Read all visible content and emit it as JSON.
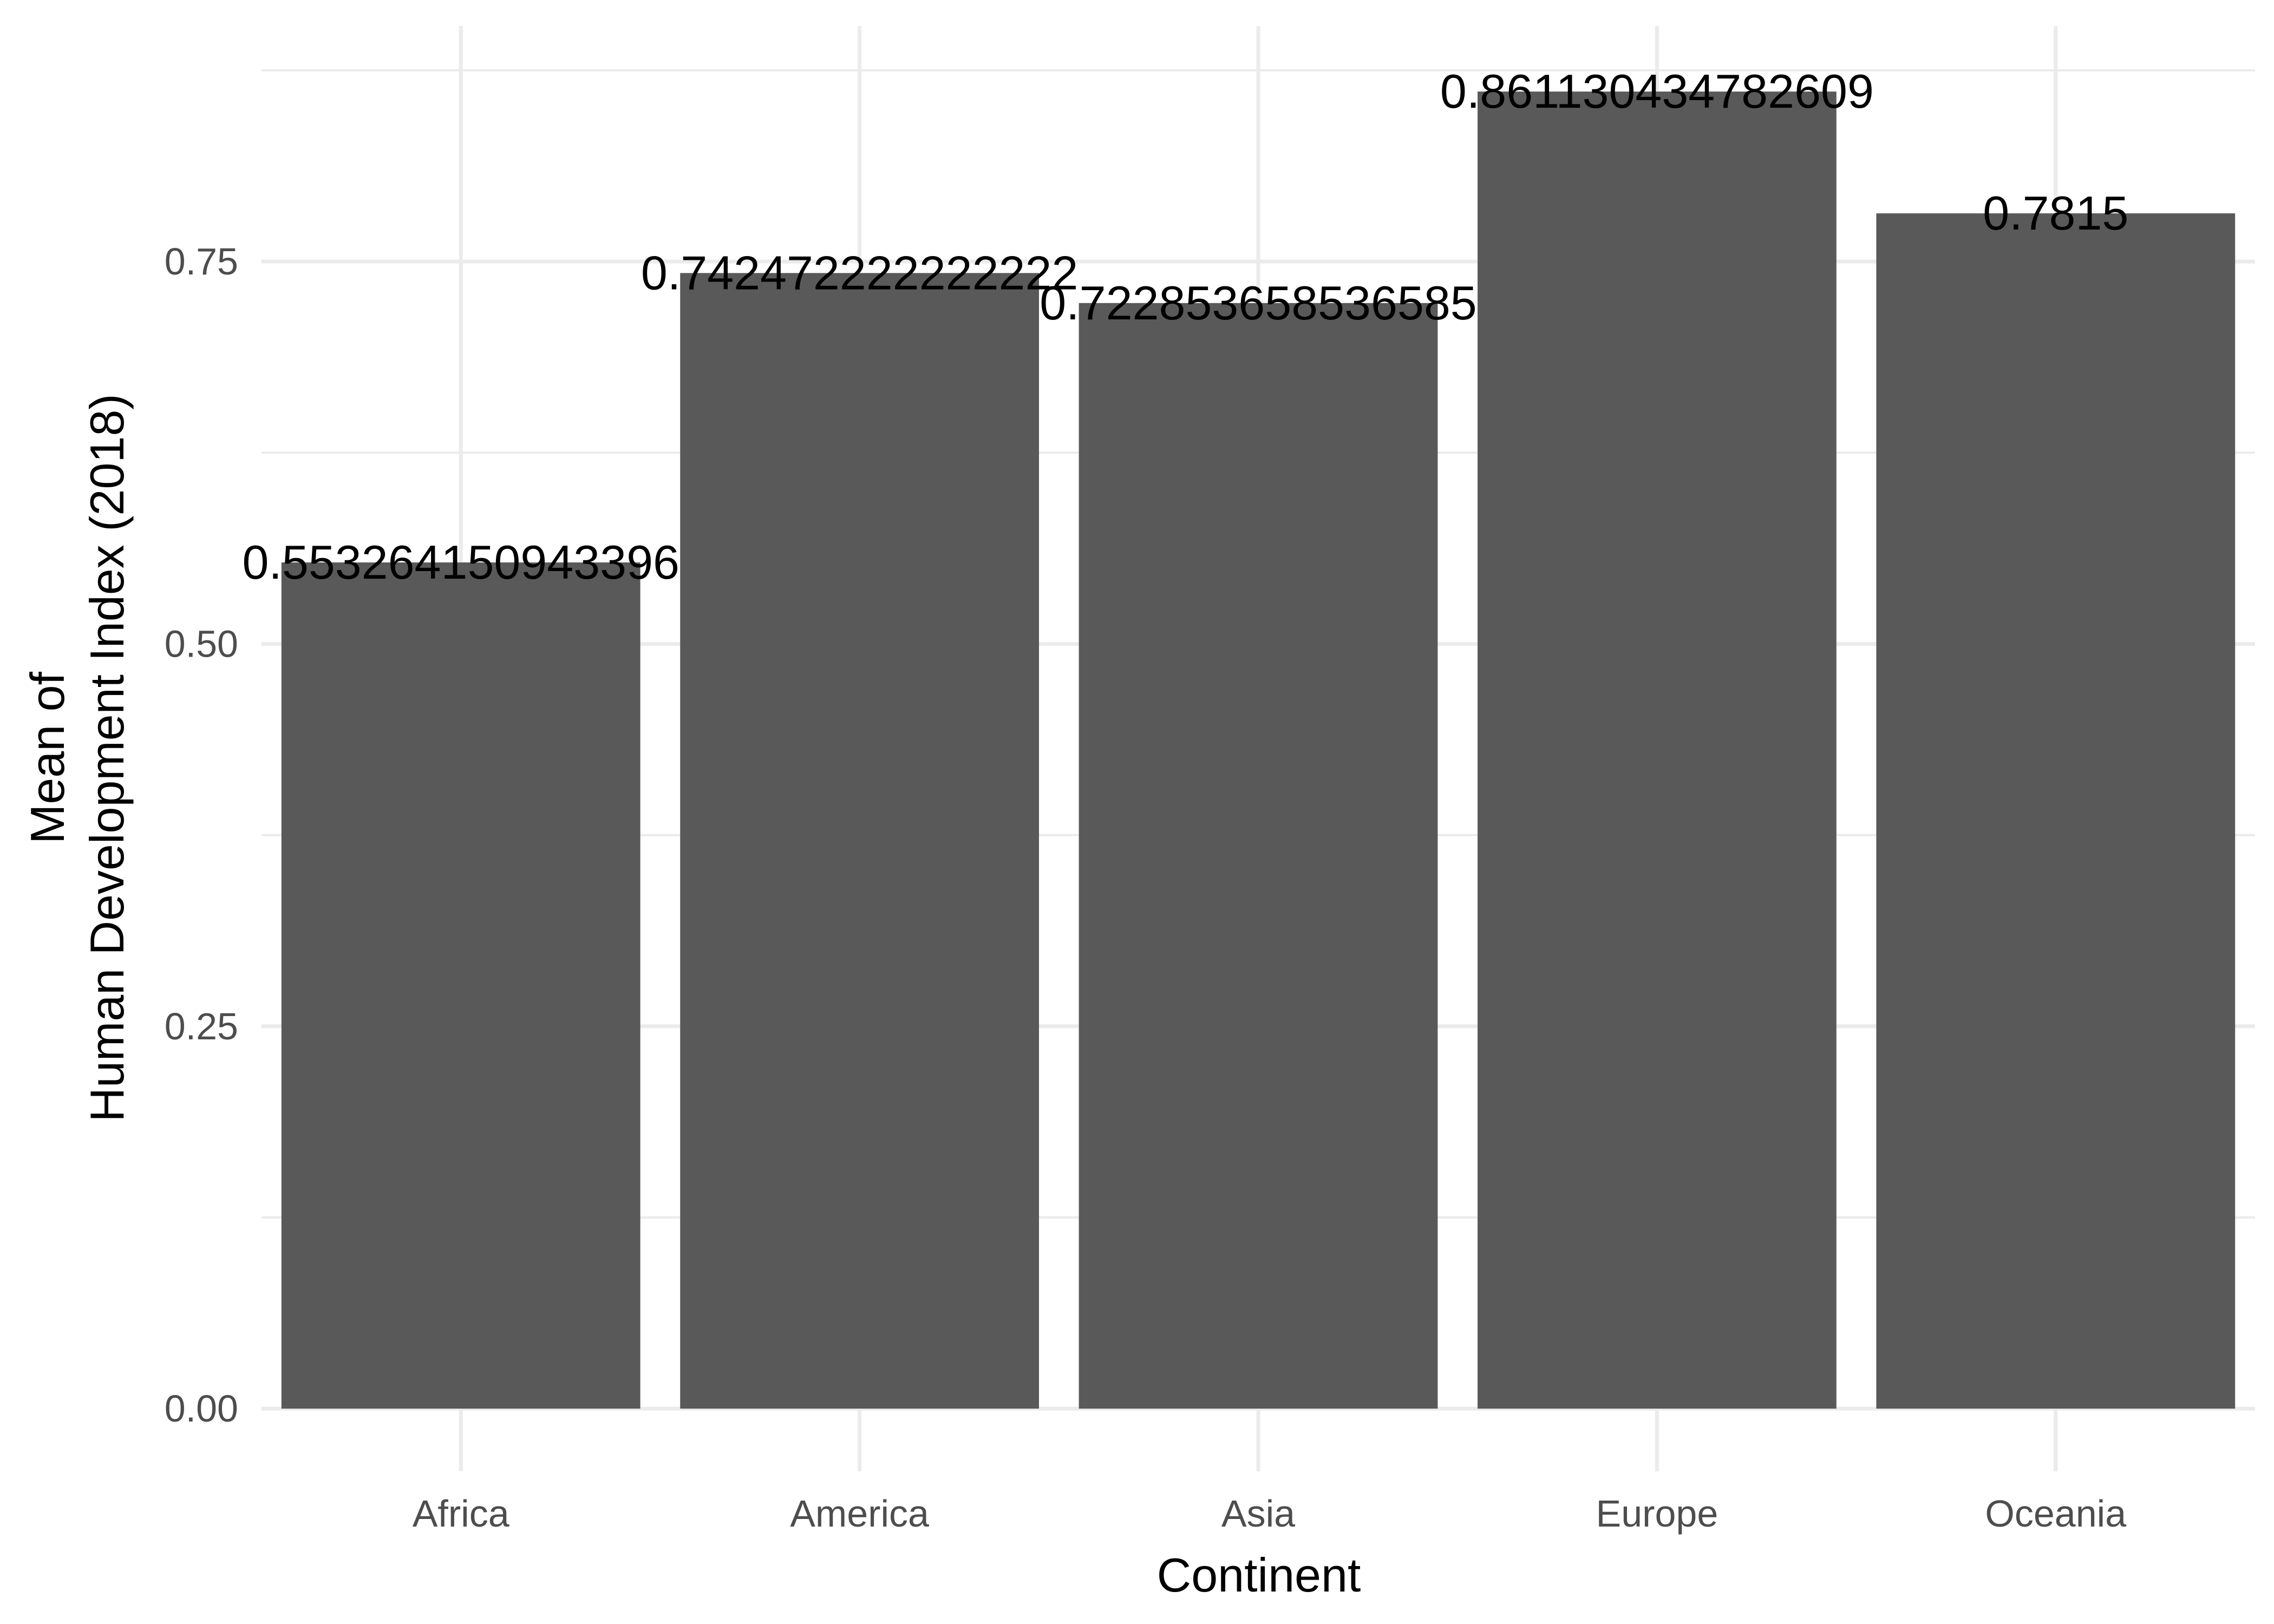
{
  "chart_data": {
    "type": "bar",
    "categories": [
      "Africa",
      "America",
      "Asia",
      "Europe",
      "Oceania"
    ],
    "values": [
      0.553264150943396,
      0.742472222222222,
      0.722853658536585,
      0.861130434782609,
      0.7815
    ],
    "data_labels": [
      "0.553264150943396",
      "0.742472222222222",
      "0.722853658536585",
      "0.861130434782609",
      "0.7815"
    ],
    "xlabel": "Continent",
    "ylabel_lines": [
      "Mean of",
      "Human Development Index (2018)"
    ],
    "y_ticks": [
      0,
      0.25,
      0.5,
      0.75
    ],
    "y_tick_labels": [
      "0.00",
      "0.25",
      "0.50",
      "0.75"
    ],
    "ylim": [
      -0.041,
      0.904
    ],
    "grid": true,
    "bar_color": "#595959",
    "grid_color": "#ebebeb",
    "background": "#ffffff"
  }
}
